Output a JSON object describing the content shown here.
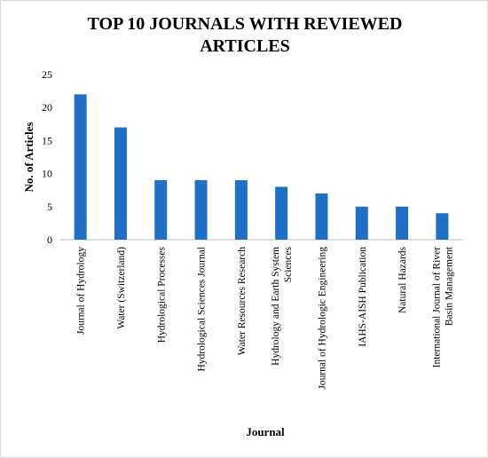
{
  "chart_data": {
    "type": "bar",
    "title": "TOP 10 JOURNALS WITH REVIEWED ARTICLES",
    "xlabel": "Journal",
    "ylabel": "No. of Articles",
    "ylim": [
      0,
      25
    ],
    "yticks": [
      0,
      5,
      10,
      15,
      20,
      25
    ],
    "grid": false,
    "legend": "none",
    "bar_color": "#1f6fc6",
    "categories": [
      [
        "Journal of Hydrology"
      ],
      [
        "Water (Switzerland)"
      ],
      [
        "Hydrological Processes"
      ],
      [
        "Hydrological Sciences Journal"
      ],
      [
        "Water Resources Research"
      ],
      [
        "Hydrology and Earth System",
        "Sciences"
      ],
      [
        "Journal of Hydrologic Engineering"
      ],
      [
        "IAHS-AISH Publication"
      ],
      [
        "Natural Hazards"
      ],
      [
        "International Journal of River",
        "Basin Management"
      ]
    ],
    "values": [
      22,
      17,
      9,
      9,
      9,
      8,
      7,
      5,
      5,
      4
    ]
  }
}
